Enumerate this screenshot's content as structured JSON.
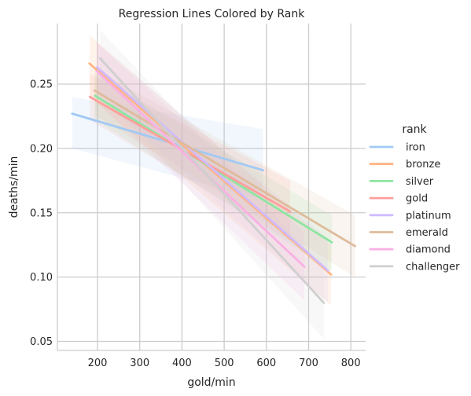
{
  "chart_data": {
    "type": "line",
    "title": "Regression Lines Colored by Rank",
    "xlabel": "gold/min",
    "ylabel": "deaths/min",
    "xlim": [
      105,
      835
    ],
    "ylim": [
      0.043,
      0.297
    ],
    "xticks": [
      200,
      300,
      400,
      500,
      600,
      700,
      800
    ],
    "yticks": [
      0.05,
      0.1,
      0.15,
      0.2,
      0.25
    ],
    "xtick_labels": [
      "200",
      "300",
      "400",
      "500",
      "600",
      "700",
      "800"
    ],
    "ytick_labels": [
      "0.05",
      "0.10",
      "0.15",
      "0.20",
      "0.25"
    ],
    "grid": true,
    "legend": {
      "title": "rank",
      "placement": "right"
    },
    "series": [
      {
        "name": "iron",
        "color": "#a1c9f4",
        "x": [
          140,
          592
        ],
        "y": [
          0.227,
          0.183
        ],
        "band_upper": [
          0.24,
          0.215
        ],
        "band_lower": [
          0.2,
          0.16
        ]
      },
      {
        "name": "bronze",
        "color": "#ffb482",
        "x": [
          181,
          753
        ],
        "y": [
          0.266,
          0.102
        ],
        "band_upper": [
          0.288,
          0.125
        ],
        "band_lower": [
          0.24,
          0.078
        ]
      },
      {
        "name": "silver",
        "color": "#8de5a1",
        "x": [
          194,
          755
        ],
        "y": [
          0.241,
          0.127
        ],
        "band_upper": [
          0.258,
          0.148
        ],
        "band_lower": [
          0.222,
          0.105
        ]
      },
      {
        "name": "gold",
        "color": "#ff9f9b",
        "x": [
          182,
          656
        ],
        "y": [
          0.24,
          0.151
        ],
        "band_upper": [
          0.258,
          0.175
        ],
        "band_lower": [
          0.222,
          0.128
        ]
      },
      {
        "name": "platinum",
        "color": "#d0bbff",
        "x": [
          199,
          746
        ],
        "y": [
          0.263,
          0.105
        ],
        "band_upper": [
          0.282,
          0.13
        ],
        "band_lower": [
          0.242,
          0.08
        ]
      },
      {
        "name": "emerald",
        "color": "#debb9b",
        "x": [
          193,
          810
        ],
        "y": [
          0.245,
          0.124
        ],
        "band_upper": [
          0.262,
          0.148
        ],
        "band_lower": [
          0.226,
          0.1
        ]
      },
      {
        "name": "diamond",
        "color": "#fab0e4",
        "x": [
          198,
          690
        ],
        "y": [
          0.26,
          0.108
        ],
        "band_upper": [
          0.282,
          0.135
        ],
        "band_lower": [
          0.236,
          0.082
        ]
      },
      {
        "name": "challenger",
        "color": "#cfcfcf",
        "x": [
          206,
          736
        ],
        "y": [
          0.27,
          0.08
        ],
        "band_upper": [
          0.292,
          0.108
        ],
        "band_lower": [
          0.245,
          0.052
        ]
      }
    ]
  }
}
